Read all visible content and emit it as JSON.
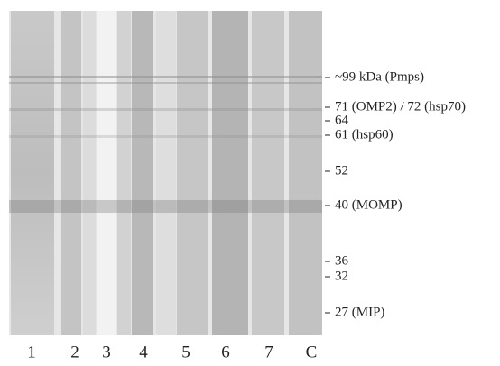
{
  "markers": [
    "~99 kDa (Pmps)",
    "71 (OMP2) / 72 (hsp70)",
    "64",
    "61 (hsp60)",
    "52",
    "40 (MOMP)",
    "36",
    "32",
    "27 (MIP)"
  ],
  "lanes": [
    "1",
    "2",
    "3",
    "4",
    "5",
    "6",
    "7",
    "C"
  ]
}
